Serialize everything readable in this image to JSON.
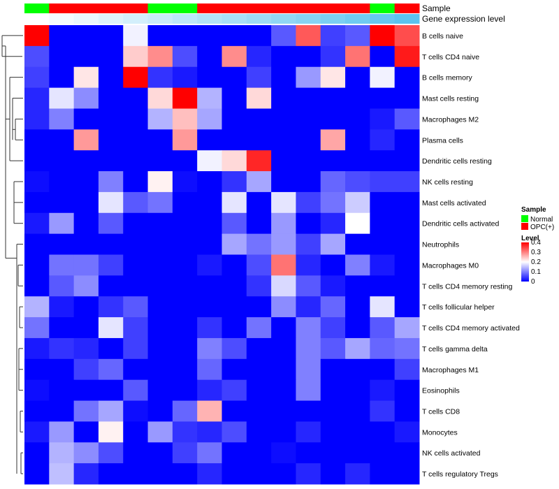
{
  "chart_data": {
    "type": "heatmap",
    "annotation_rows": [
      {
        "name": "Sample",
        "columns": [
          "Normal",
          "OPC(+)",
          "OPC(+)",
          "OPC(+)",
          "OPC(+)",
          "Normal",
          "Normal",
          "OPC(+)",
          "OPC(+)",
          "OPC(+)",
          "OPC(+)",
          "OPC(+)",
          "OPC(+)",
          "OPC(+)",
          "Normal",
          "OPC(+)"
        ]
      },
      {
        "name": "Gene expression level",
        "columns": [
          0.0,
          0.07,
          0.13,
          0.2,
          0.27,
          0.33,
          0.4,
          0.47,
          0.53,
          0.6,
          0.67,
          0.73,
          0.8,
          0.87,
          0.93,
          1.0
        ]
      }
    ],
    "rows": [
      "B cells naive",
      "T cells CD4 naive",
      "B cells memory",
      "Mast cells resting",
      "Macrophages M2",
      "Plasma cells",
      "Dendritic cells resting",
      "NK cells resting",
      "Mast cells activated",
      "Dendritic cells activated",
      "Neutrophils",
      "Macrophages M0",
      "T cells CD4 memory resting",
      "T cells follicular helper",
      "T cells CD4 memory activated",
      "T cells gamma delta",
      "Macrophages M1",
      "Eosinophils",
      "T cells CD8",
      "Monocytes",
      "NK cells activated",
      "T cells regulatory  Tregs"
    ],
    "values": [
      [
        0.4,
        0.0,
        0.0,
        0.0,
        0.19,
        0.0,
        0.0,
        0.0,
        0.0,
        0.0,
        0.07,
        0.33,
        0.05,
        0.07,
        0.4,
        0.34
      ],
      [
        0.06,
        0.0,
        0.0,
        0.0,
        0.24,
        0.29,
        0.06,
        0.0,
        0.29,
        0.03,
        0.0,
        0.0,
        0.04,
        0.31,
        0.0,
        0.38
      ],
      [
        0.05,
        0.0,
        0.22,
        0.0,
        0.4,
        0.04,
        0.02,
        0.0,
        0.0,
        0.05,
        0.0,
        0.12,
        0.22,
        0.0,
        0.19,
        0.0
      ],
      [
        0.03,
        0.18,
        0.11,
        0.0,
        0.0,
        0.23,
        0.4,
        0.14,
        0.0,
        0.23,
        0.0,
        0.0,
        0.0,
        0.0,
        0.0,
        0.0
      ],
      [
        0.03,
        0.1,
        0.0,
        0.0,
        0.0,
        0.14,
        0.25,
        0.13,
        0.0,
        0.0,
        0.0,
        0.0,
        0.0,
        0.0,
        0.02,
        0.07
      ],
      [
        0.0,
        0.0,
        0.28,
        0.0,
        0.0,
        0.0,
        0.28,
        0.0,
        0.0,
        0.0,
        0.0,
        0.0,
        0.27,
        0.0,
        0.03,
        0.0
      ],
      [
        0.0,
        0.0,
        0.0,
        0.0,
        0.0,
        0.0,
        0.0,
        0.19,
        0.23,
        0.37,
        0.0,
        0.0,
        0.0,
        0.0,
        0.0,
        0.0
      ],
      [
        0.01,
        0.0,
        0.0,
        0.1,
        0.0,
        0.21,
        0.01,
        0.0,
        0.04,
        0.13,
        0.0,
        0.0,
        0.08,
        0.06,
        0.05,
        0.05
      ],
      [
        0.0,
        0.0,
        0.0,
        0.18,
        0.07,
        0.09,
        0.0,
        0.0,
        0.18,
        0.0,
        0.18,
        0.05,
        0.09,
        0.16,
        0.0,
        0.0
      ],
      [
        0.02,
        0.12,
        0.0,
        0.07,
        0.0,
        0.0,
        0.0,
        0.0,
        0.07,
        0.0,
        0.12,
        0.0,
        0.03,
        0.2,
        0.0,
        0.0
      ],
      [
        0.0,
        0.0,
        0.0,
        0.0,
        0.0,
        0.0,
        0.0,
        0.0,
        0.13,
        0.09,
        0.12,
        0.05,
        0.13,
        0.0,
        0.0,
        0.0
      ],
      [
        0.0,
        0.09,
        0.09,
        0.05,
        0.0,
        0.0,
        0.0,
        0.02,
        0.0,
        0.06,
        0.31,
        0.03,
        0.0,
        0.1,
        0.02,
        0.0
      ],
      [
        0.0,
        0.07,
        0.11,
        0.0,
        0.0,
        0.0,
        0.0,
        0.0,
        0.0,
        0.04,
        0.17,
        0.07,
        0.02,
        0.0,
        0.0,
        0.0
      ],
      [
        0.14,
        0.02,
        0.0,
        0.04,
        0.07,
        0.0,
        0.0,
        0.0,
        0.0,
        0.0,
        0.11,
        0.03,
        0.08,
        0.0,
        0.18,
        0.0
      ],
      [
        0.09,
        0.0,
        0.0,
        0.18,
        0.05,
        0.0,
        0.0,
        0.04,
        0.0,
        0.09,
        0.0,
        0.1,
        0.05,
        0.0,
        0.07,
        0.13
      ],
      [
        0.02,
        0.04,
        0.03,
        0.0,
        0.05,
        0.0,
        0.0,
        0.1,
        0.06,
        0.0,
        0.0,
        0.1,
        0.07,
        0.13,
        0.08,
        0.09
      ],
      [
        0.0,
        0.0,
        0.05,
        0.08,
        0.0,
        0.0,
        0.0,
        0.08,
        0.0,
        0.0,
        0.0,
        0.1,
        0.0,
        0.0,
        0.0,
        0.05
      ],
      [
        0.01,
        0.0,
        0.0,
        0.0,
        0.07,
        0.0,
        0.0,
        0.03,
        0.05,
        0.0,
        0.0,
        0.1,
        0.0,
        0.0,
        0.02,
        0.0
      ],
      [
        0.0,
        0.0,
        0.09,
        0.13,
        0.01,
        0.0,
        0.08,
        0.26,
        0.0,
        0.0,
        0.0,
        0.0,
        0.0,
        0.0,
        0.04,
        0.0
      ],
      [
        0.02,
        0.12,
        0.0,
        0.21,
        0.0,
        0.12,
        0.04,
        0.03,
        0.06,
        0.0,
        0.0,
        0.03,
        0.0,
        0.0,
        0.0,
        0.02
      ],
      [
        0.0,
        0.14,
        0.11,
        0.06,
        0.0,
        0.0,
        0.05,
        0.09,
        0.0,
        0.0,
        0.01,
        0.0,
        0.0,
        0.0,
        0.0,
        0.0
      ],
      [
        0.0,
        0.15,
        0.03,
        0.0,
        0.0,
        0.0,
        0.0,
        0.03,
        0.0,
        0.0,
        0.0,
        0.03,
        0.0,
        0.03,
        0.0,
        0.0
      ]
    ],
    "color_scale": {
      "min": 0,
      "max": 0.4,
      "colors": [
        "#0000ff",
        "#ffffff",
        "#ff0000"
      ]
    },
    "sample_colors": {
      "Normal": "#00ff00",
      "OPC(+)": "#ff0000"
    },
    "gene_expression_colors": [
      "#ffffff",
      "#5bc3ef"
    ],
    "legend": {
      "sample_title": "Sample",
      "sample_items": [
        "Normal",
        "OPC(+)"
      ],
      "level_title": "Level",
      "level_ticks": [
        "0.4",
        "0.3",
        "0.2",
        "0.1",
        "0"
      ]
    }
  }
}
